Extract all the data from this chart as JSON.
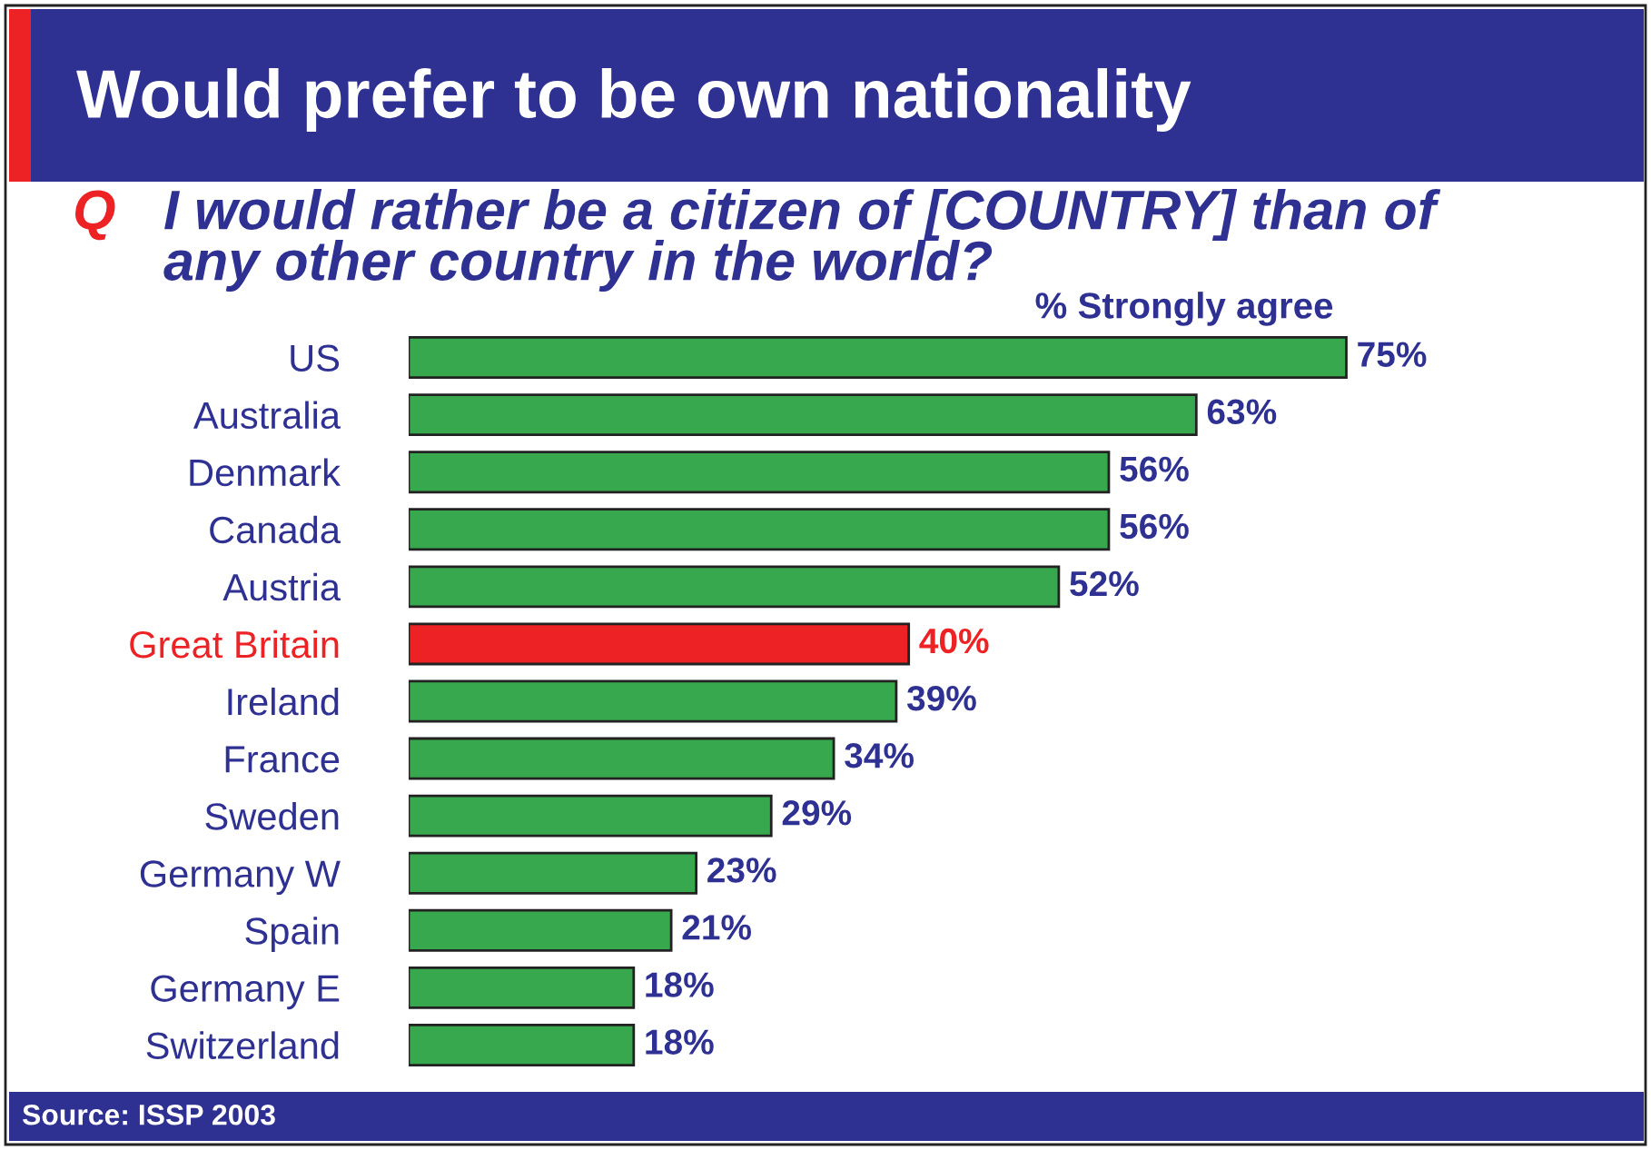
{
  "chart_data": {
    "type": "bar",
    "orientation": "horizontal",
    "title": "Would prefer to be own nationality",
    "subtitle": "Q I would rather be a citizen of [COUNTRY] than of\nany other country in the world?",
    "xlabel": "% Strongly agree",
    "annotations": [
      "Source: ISSP 2003"
    ],
    "categories": [
      "US",
      "Australia",
      "Denmark",
      "Canada",
      "Austria",
      "Great Britain",
      "Ireland",
      "France",
      "Sweden",
      "Germany W",
      "Spain",
      "Germany E",
      "Switzerland"
    ],
    "values": [
      75,
      63,
      56,
      56,
      52,
      40,
      39,
      34,
      29,
      23,
      21,
      18,
      18
    ],
    "colors": [
      "#38a84e",
      "#38a84e",
      "#38a84e",
      "#38a84e",
      "#38a84e",
      "#ed2224",
      "#38a84e",
      "#38a84e",
      "#38a84e",
      "#38a84e",
      "#38a84e",
      "#38a84e",
      "#38a84e"
    ],
    "value_labels": [
      "75%",
      "63%",
      "56%",
      "56%",
      "52%",
      "40%",
      "39%",
      "34%",
      "29%",
      "23%",
      "21%",
      "18%",
      "18%"
    ]
  }
}
